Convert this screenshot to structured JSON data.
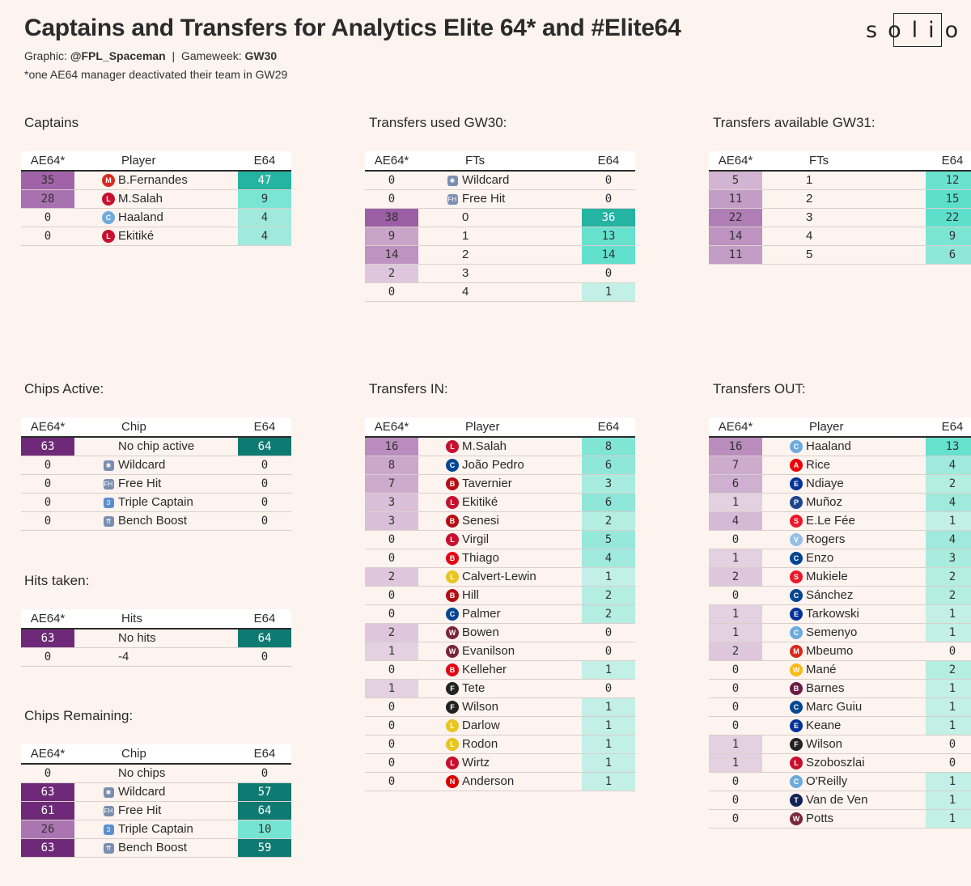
{
  "header": {
    "title": "Captains and Transfers for Analytics Elite 64* and #Elite64",
    "graphic_label": "Graphic:",
    "graphic_author": "@FPL_Spaceman",
    "separator": "|",
    "gameweek_label": "Gameweek:",
    "gameweek_value": "GW30",
    "note": "*one AE64 manager deactivated their team in GW29",
    "logo_text": "solio"
  },
  "colors": {
    "background": "#fdf3ef",
    "purple_dark": "#6e2a78",
    "teal_dark": "#0f7a72"
  },
  "captains": {
    "title": "Captains",
    "headers": [
      "AE64*",
      "Player",
      "E64"
    ],
    "rows": [
      {
        "ae": "35",
        "icon": "man-utd-crest-icon",
        "name": "B.Fernandes",
        "e": "47"
      },
      {
        "ae": "28",
        "icon": "liverpool-crest-icon",
        "name": "M.Salah",
        "e": "9"
      },
      {
        "ae": "0",
        "icon": "man-city-crest-icon",
        "name": "Haaland",
        "e": "4"
      },
      {
        "ae": "0",
        "icon": "liverpool-crest-icon",
        "name": "Ekitiké",
        "e": "4"
      }
    ]
  },
  "transfers_used": {
    "title": "Transfers used GW30:",
    "headers": [
      "AE64*",
      "FTs",
      "E64"
    ],
    "rows": [
      {
        "ae": "0",
        "icon": "wildcard-chip-icon",
        "name": "Wildcard",
        "e": "0"
      },
      {
        "ae": "0",
        "icon": "free-hit-chip-icon",
        "name": "Free Hit",
        "e": "0"
      },
      {
        "ae": "38",
        "icon": "",
        "name": "0",
        "e": "36"
      },
      {
        "ae": "9",
        "icon": "",
        "name": "1",
        "e": "13"
      },
      {
        "ae": "14",
        "icon": "",
        "name": "2",
        "e": "14"
      },
      {
        "ae": "2",
        "icon": "",
        "name": "3",
        "e": "0"
      },
      {
        "ae": "0",
        "icon": "",
        "name": "4",
        "e": "1"
      }
    ]
  },
  "transfers_available": {
    "title": "Transfers available GW31:",
    "headers": [
      "AE64*",
      "FTs",
      "E64"
    ],
    "rows": [
      {
        "ae": "5",
        "icon": "",
        "name": "1",
        "e": "12"
      },
      {
        "ae": "11",
        "icon": "",
        "name": "2",
        "e": "15"
      },
      {
        "ae": "22",
        "icon": "",
        "name": "3",
        "e": "22"
      },
      {
        "ae": "14",
        "icon": "",
        "name": "4",
        "e": "9"
      },
      {
        "ae": "11",
        "icon": "",
        "name": "5",
        "e": "6"
      }
    ]
  },
  "chips_active": {
    "title": "Chips Active:",
    "headers": [
      "AE64*",
      "Chip",
      "E64"
    ],
    "rows": [
      {
        "ae": "63",
        "icon": "",
        "name": "No chip active",
        "e": "64"
      },
      {
        "ae": "0",
        "icon": "wildcard-chip-icon",
        "name": "Wildcard",
        "e": "0"
      },
      {
        "ae": "0",
        "icon": "free-hit-chip-icon",
        "name": "Free Hit",
        "e": "0"
      },
      {
        "ae": "0",
        "icon": "triple-captain-chip-icon",
        "name": "Triple Captain",
        "e": "0"
      },
      {
        "ae": "0",
        "icon": "bench-boost-chip-icon",
        "name": "Bench Boost",
        "e": "0"
      }
    ]
  },
  "hits_taken": {
    "title": "Hits taken:",
    "headers": [
      "AE64*",
      "Hits",
      "E64"
    ],
    "rows": [
      {
        "ae": "63",
        "icon": "",
        "name": "No hits",
        "e": "64"
      },
      {
        "ae": "0",
        "icon": "",
        "name": "-4",
        "e": "0"
      }
    ]
  },
  "chips_remaining": {
    "title": "Chips Remaining:",
    "headers": [
      "AE64*",
      "Chip",
      "E64"
    ],
    "rows": [
      {
        "ae": "0",
        "icon": "",
        "name": "No chips",
        "e": "0"
      },
      {
        "ae": "63",
        "icon": "wildcard-chip-icon",
        "name": "Wildcard",
        "e": "57"
      },
      {
        "ae": "61",
        "icon": "free-hit-chip-icon",
        "name": "Free Hit",
        "e": "64"
      },
      {
        "ae": "26",
        "icon": "triple-captain-chip-icon",
        "name": "Triple Captain",
        "e": "10"
      },
      {
        "ae": "63",
        "icon": "bench-boost-chip-icon",
        "name": "Bench Boost",
        "e": "59"
      }
    ]
  },
  "transfers_in": {
    "title": "Transfers IN:",
    "headers": [
      "AE64*",
      "Player",
      "E64"
    ],
    "rows": [
      {
        "ae": "16",
        "icon": "liverpool-crest-icon",
        "name": "M.Salah",
        "e": "8"
      },
      {
        "ae": "8",
        "icon": "chelsea-crest-icon",
        "name": "João Pedro",
        "e": "6"
      },
      {
        "ae": "7",
        "icon": "bournemouth-crest-icon",
        "name": "Tavernier",
        "e": "3"
      },
      {
        "ae": "3",
        "icon": "liverpool-crest-icon",
        "name": "Ekitiké",
        "e": "6"
      },
      {
        "ae": "3",
        "icon": "bournemouth-crest-icon",
        "name": "Senesi",
        "e": "2"
      },
      {
        "ae": "0",
        "icon": "liverpool-crest-icon",
        "name": "Virgil",
        "e": "5"
      },
      {
        "ae": "0",
        "icon": "brentford-crest-icon",
        "name": "Thiago",
        "e": "4"
      },
      {
        "ae": "2",
        "icon": "leeds-crest-icon",
        "name": "Calvert-Lewin",
        "e": "1"
      },
      {
        "ae": "0",
        "icon": "bournemouth-crest-icon",
        "name": "Hill",
        "e": "2"
      },
      {
        "ae": "0",
        "icon": "chelsea-crest-icon",
        "name": "Palmer",
        "e": "2"
      },
      {
        "ae": "2",
        "icon": "west-ham-crest-icon",
        "name": "Bowen",
        "e": "0"
      },
      {
        "ae": "1",
        "icon": "west-ham-crest-icon",
        "name": "Evanilson",
        "e": "0"
      },
      {
        "ae": "0",
        "icon": "brentford-crest-icon",
        "name": "Kelleher",
        "e": "1"
      },
      {
        "ae": "1",
        "icon": "fulham-crest-icon",
        "name": "Tete",
        "e": "0"
      },
      {
        "ae": "0",
        "icon": "fulham-crest-icon",
        "name": "Wilson",
        "e": "1"
      },
      {
        "ae": "0",
        "icon": "leeds-crest-icon",
        "name": "Darlow",
        "e": "1"
      },
      {
        "ae": "0",
        "icon": "leeds-crest-icon",
        "name": "Rodon",
        "e": "1"
      },
      {
        "ae": "0",
        "icon": "liverpool-crest-icon",
        "name": "Wirtz",
        "e": "1"
      },
      {
        "ae": "0",
        "icon": "nottm-forest-crest-icon",
        "name": "Anderson",
        "e": "1"
      }
    ]
  },
  "transfers_out": {
    "title": "Transfers OUT:",
    "headers": [
      "AE64*",
      "Player",
      "E64"
    ],
    "rows": [
      {
        "ae": "16",
        "icon": "man-city-crest-icon",
        "name": "Haaland",
        "e": "13"
      },
      {
        "ae": "7",
        "icon": "arsenal-crest-icon",
        "name": "Rice",
        "e": "4"
      },
      {
        "ae": "6",
        "icon": "everton-crest-icon",
        "name": "Ndiaye",
        "e": "2"
      },
      {
        "ae": "1",
        "icon": "crystal-palace-crest-icon",
        "name": "Muñoz",
        "e": "4"
      },
      {
        "ae": "4",
        "icon": "sunderland-crest-icon",
        "name": "E.Le Fée",
        "e": "1"
      },
      {
        "ae": "0",
        "icon": "aston-villa-crest-icon",
        "name": "Rogers",
        "e": "4"
      },
      {
        "ae": "1",
        "icon": "chelsea-crest-icon",
        "name": "Enzo",
        "e": "3"
      },
      {
        "ae": "2",
        "icon": "sunderland-crest-icon",
        "name": "Mukiele",
        "e": "2"
      },
      {
        "ae": "0",
        "icon": "chelsea-crest-icon",
        "name": "Sánchez",
        "e": "2"
      },
      {
        "ae": "1",
        "icon": "everton-crest-icon",
        "name": "Tarkowski",
        "e": "1"
      },
      {
        "ae": "1",
        "icon": "man-city-crest-icon",
        "name": "Semenyo",
        "e": "1"
      },
      {
        "ae": "2",
        "icon": "man-utd-crest-icon",
        "name": "Mbeumo",
        "e": "0"
      },
      {
        "ae": "0",
        "icon": "wolves-crest-icon",
        "name": "Mané",
        "e": "2"
      },
      {
        "ae": "0",
        "icon": "burnley-crest-icon",
        "name": "Barnes",
        "e": "1"
      },
      {
        "ae": "0",
        "icon": "chelsea-crest-icon",
        "name": "Marc Guiu",
        "e": "1"
      },
      {
        "ae": "0",
        "icon": "everton-crest-icon",
        "name": "Keane",
        "e": "1"
      },
      {
        "ae": "1",
        "icon": "fulham-crest-icon",
        "name": "Wilson",
        "e": "0"
      },
      {
        "ae": "1",
        "icon": "liverpool-crest-icon",
        "name": "Szoboszlai",
        "e": "0"
      },
      {
        "ae": "0",
        "icon": "man-city-crest-icon",
        "name": "O'Reilly",
        "e": "1"
      },
      {
        "ae": "0",
        "icon": "tottenham-crest-icon",
        "name": "Van de Ven",
        "e": "1"
      },
      {
        "ae": "0",
        "icon": "west-ham-crest-icon",
        "name": "Potts",
        "e": "1"
      }
    ]
  }
}
